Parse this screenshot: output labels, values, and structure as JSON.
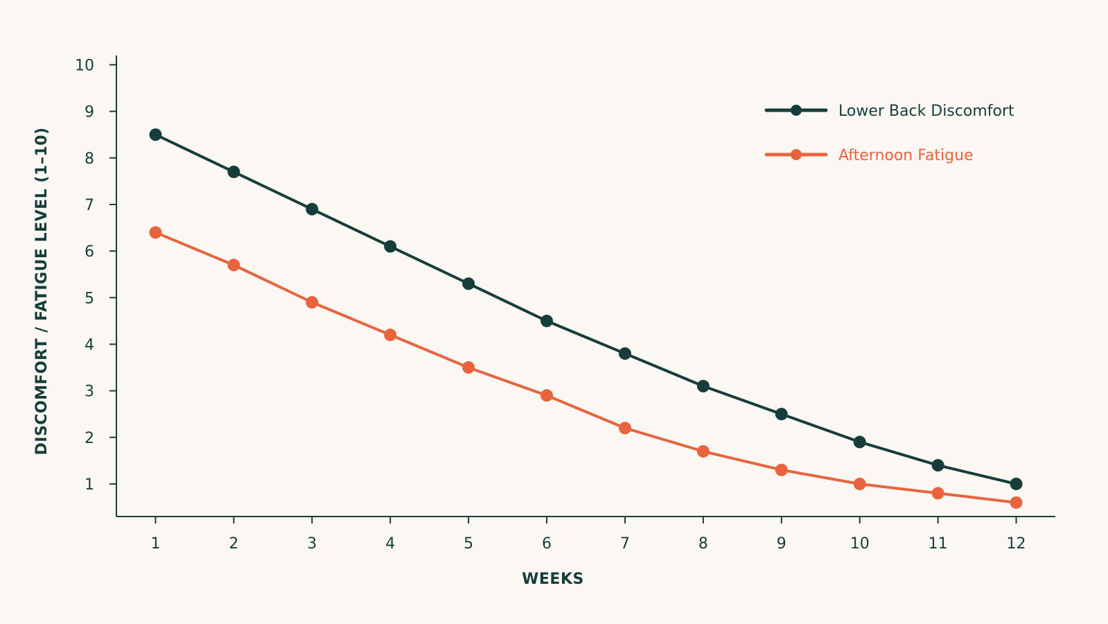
{
  "chart_data": {
    "type": "line",
    "x": [
      1,
      2,
      3,
      4,
      5,
      6,
      7,
      8,
      9,
      10,
      11,
      12
    ],
    "xlabel": "WEEKS",
    "ylabel": "DISCOMFORT / FATIGUE LEVEL (1–10)",
    "xlim": [
      0.5,
      12.5
    ],
    "ylim": [
      0.3,
      10.2
    ],
    "yticks": [
      1,
      2,
      3,
      4,
      5,
      6,
      7,
      8,
      9,
      10
    ],
    "grid": false,
    "legend_position": "top-right",
    "series": [
      {
        "name": "Lower Back Discomfort",
        "color": "#163d3a",
        "values": [
          8.5,
          7.7,
          6.9,
          6.1,
          5.3,
          4.5,
          3.8,
          3.1,
          2.5,
          1.9,
          1.4,
          1.0
        ]
      },
      {
        "name": "Afternoon Fatigue",
        "color": "#e8643e",
        "values": [
          6.4,
          5.7,
          4.9,
          4.2,
          3.5,
          2.9,
          2.2,
          1.7,
          1.3,
          1.0,
          0.8,
          0.6
        ]
      }
    ]
  }
}
